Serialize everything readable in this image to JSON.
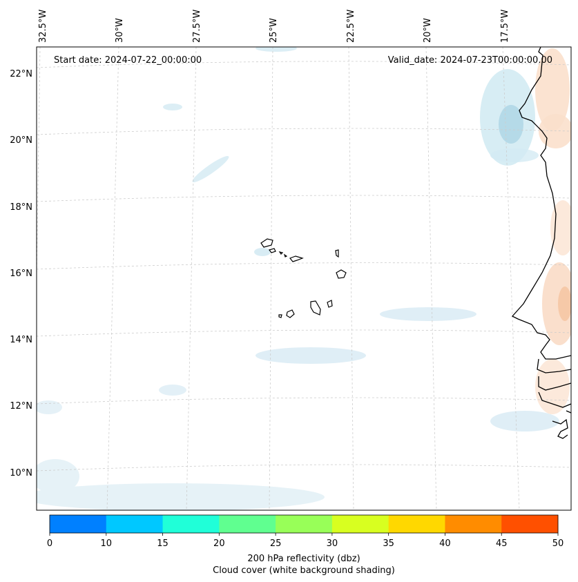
{
  "map": {
    "start_date_text": "Start date: 2024-07-22_00:00:00",
    "valid_date_text": "Valid_date: 2024-07-23T00:00:00.00",
    "lon_labels": [
      "32.5°W",
      "30°W",
      "27.5°W",
      "25°W",
      "22.5°W",
      "20°W",
      "17.5°W"
    ],
    "lat_labels": [
      "22°N",
      "20°N",
      "18°N",
      "16°N",
      "14°N",
      "12°N",
      "10°N"
    ],
    "region": "Cabo Verde and West African coast"
  },
  "colorbar": {
    "ticks": [
      "0",
      "10",
      "15",
      "20",
      "25",
      "30",
      "35",
      "40",
      "45",
      "50"
    ],
    "colors": [
      "#0080ff",
      "#00c8ff",
      "#20ffd8",
      "#60ff90",
      "#98ff58",
      "#d8ff20",
      "#ffd800",
      "#ff8c00",
      "#ff5000"
    ],
    "label_line1": "200 hPa reflectivity (dbz)",
    "label_line2": "Cloud cover (white background shading)"
  }
}
